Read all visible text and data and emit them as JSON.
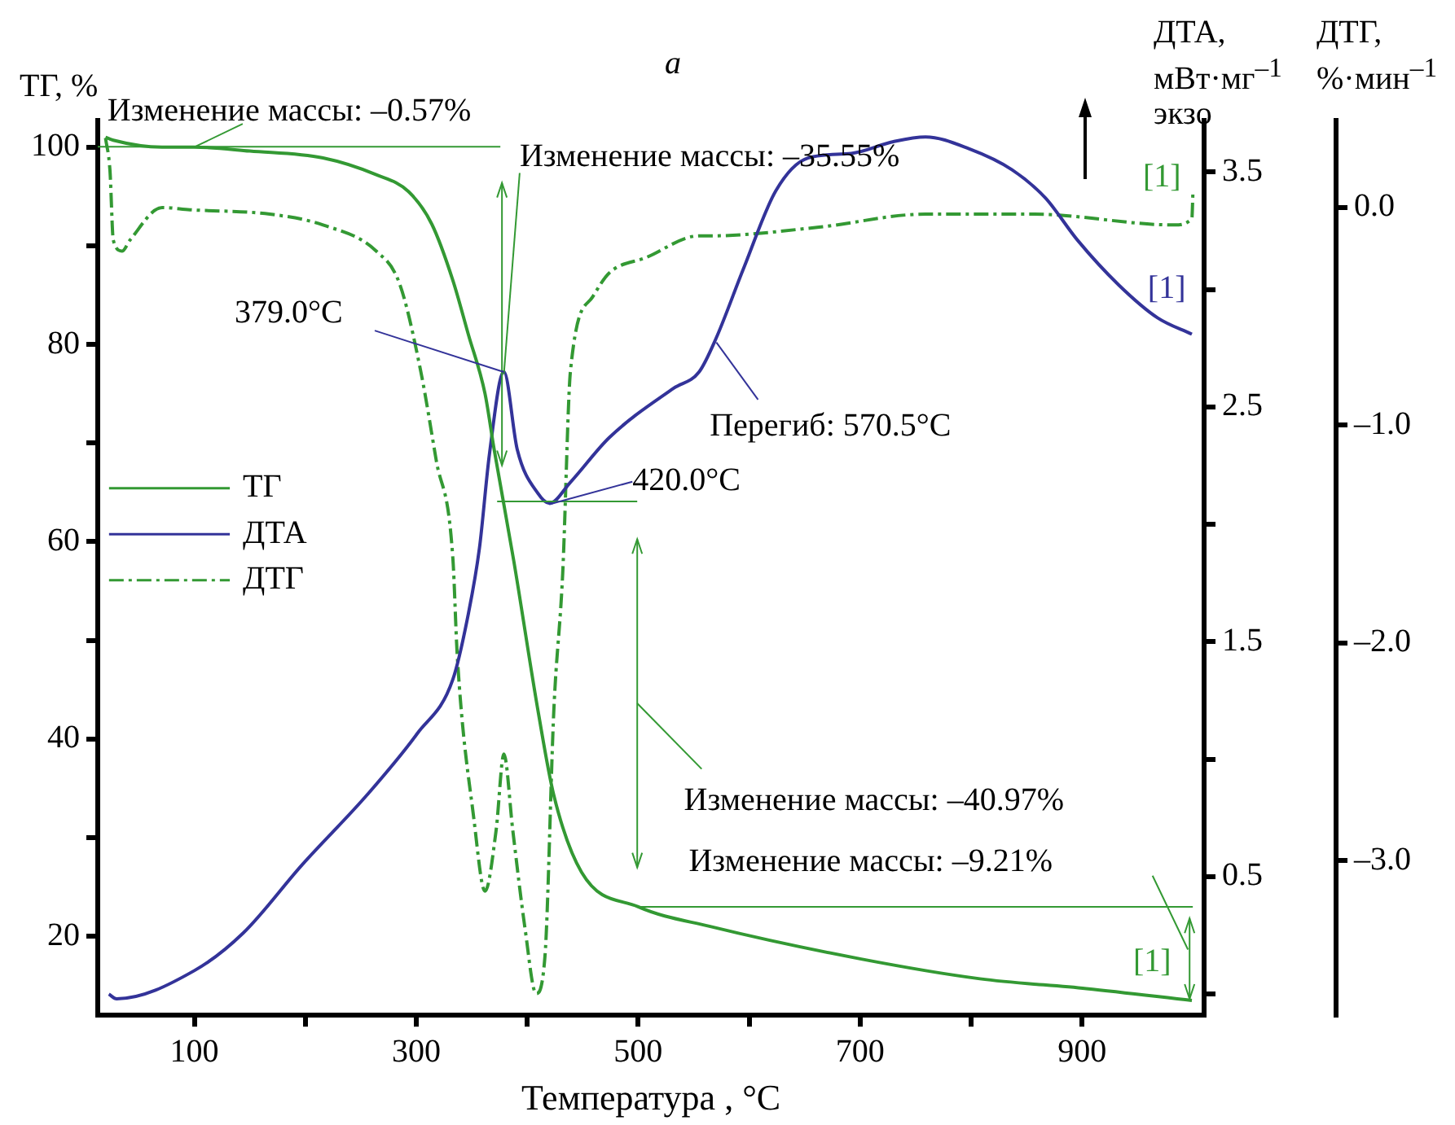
{
  "chart_data": {
    "type": "line",
    "title": "а",
    "xlabel": "Температура , °C",
    "ylabel": "ТГ, %",
    "y2label": "ДТА, мВт·мг$^{–1}$ экзо",
    "y3label": "ДТГ, %·мин$^{–1}$",
    "xlim": [
      13,
      1010
    ],
    "xticks": [
      100,
      {
        "value": 200,
        "label": null
      },
      300,
      {
        "value": 400,
        "label": null
      },
      500,
      {
        "value": 600,
        "label": null
      },
      700,
      {
        "value": 800,
        "label": null
      },
      900
    ],
    "ylim": [
      12,
      102.7
    ],
    "yticks": [
      20,
      {
        "value": 30,
        "label": null
      },
      40,
      {
        "value": 50,
        "label": null
      },
      60,
      {
        "value": 70,
        "label": null
      },
      80,
      {
        "value": 90,
        "label": null
      },
      100
    ],
    "y2lim": [
      -0.09,
      3.72
    ],
    "y2ticks": [
      {
        "value": 0,
        "label": null
      },
      0.5,
      {
        "value": 1,
        "label": null
      },
      1.5,
      {
        "value": 2,
        "label": null
      },
      2.5,
      {
        "value": 3,
        "label": null
      },
      3.5
    ],
    "y3lim": [
      -3.71,
      0.4
    ],
    "y3ticks": [
      {
        "value": -3,
        "label": "–3.0"
      },
      {
        "value": -2,
        "label": "–2.0"
      },
      {
        "value": -1,
        "label": "–1.0"
      },
      {
        "value": 0,
        "label": "0.0"
      }
    ],
    "grid": false,
    "legend": "left",
    "marker": "none",
    "series": [
      {
        "name": "ТГ",
        "color": "#339933",
        "axis": "y",
        "line_style": "solid",
        "x": [
          20,
          27,
          71,
          100,
          150,
          216,
          264,
          293,
          314,
          333,
          347,
          362,
          370,
          388,
          410,
          424,
          449,
          500,
          565,
          701,
          808,
          904,
          999
        ],
        "values": [
          101,
          100.7,
          100,
          100,
          99.6,
          98.9,
          97.2,
          95.5,
          92.2,
          86.5,
          81,
          75,
          69.5,
          58,
          42.7,
          34.3,
          26.5,
          23,
          21,
          17.7,
          15.7,
          14.7,
          13.5
        ]
      },
      {
        "name": "ДТА",
        "color": "#333399",
        "axis": "y2",
        "line_style": "solid",
        "x": [
          23,
          30,
          100,
          144,
          197,
          256,
          301,
          333,
          347,
          357,
          366,
          379,
          391,
          410,
          420,
          439,
          474,
          532,
          555,
          570,
          595,
          624,
          653,
          692,
          730,
          759,
          798,
          837,
          867,
          896,
          933,
          968,
          999
        ],
        "values": [
          0,
          -0.02,
          0.1,
          0.26,
          0.55,
          0.85,
          1.11,
          1.34,
          1.62,
          1.9,
          2.3,
          2.65,
          2.32,
          2.13,
          2.09,
          2.18,
          2.37,
          2.58,
          2.65,
          2.79,
          3.09,
          3.42,
          3.56,
          3.58,
          3.63,
          3.65,
          3.6,
          3.51,
          3.39,
          3.21,
          3.02,
          2.88,
          2.81
        ]
      },
      {
        "name": "ДТГ",
        "color": "#339933",
        "axis": "y3",
        "line_style": "dashed",
        "x": [
          20,
          24,
          27,
          35,
          42,
          71,
          96,
          168,
          216,
          264,
          285,
          304,
          318,
          333,
          337,
          352,
          362,
          372,
          379,
          387,
          398,
          408,
          416,
          424,
          432,
          439,
          459,
          474,
          507,
          555,
          565,
          663,
          759,
          856,
          983,
          999,
          1000
        ],
        "values": [
          0.32,
          0.17,
          -0.15,
          -0.2,
          -0.15,
          0,
          -0.01,
          -0.03,
          -0.08,
          -0.2,
          -0.35,
          -0.75,
          -1.16,
          -1.61,
          -2.06,
          -2.81,
          -3.14,
          -2.86,
          -2.51,
          -2.86,
          -3.31,
          -3.61,
          -3.44,
          -2.31,
          -1.68,
          -0.75,
          -0.41,
          -0.3,
          -0.23,
          -0.13,
          -0.13,
          -0.09,
          -0.03,
          -0.03,
          -0.08,
          -0.05,
          0.08
        ]
      }
    ],
    "annotations": [
      {
        "text": "Изменение массы: –0.57%",
        "x": 100,
        "y": 100
      },
      {
        "text": "Изменение массы: –35.55%",
        "x": 379,
        "y": 77
      },
      {
        "text": "379.0°C",
        "x": 379,
        "y": 77.2
      },
      {
        "text": "Перегиб: 570.5°C",
        "x": 570.5,
        "y": 80.2
      },
      {
        "text": "420.0°C",
        "x": 420,
        "y": 63.8
      },
      "Изменение массы: –40.97%",
      "Изменение массы: –9.21%",
      "[1]",
      "[1]",
      "[1]"
    ]
  }
}
